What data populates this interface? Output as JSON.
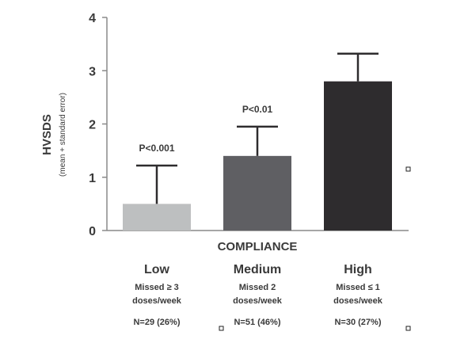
{
  "chart_data": {
    "type": "bar",
    "ylabel": "HVSDS",
    "ylabel_sub": "(mean + standard error)",
    "xlabel": "COMPLIANCE",
    "ylim": [
      0,
      4
    ],
    "yticks": [
      0,
      1,
      2,
      3,
      4
    ],
    "categories": [
      "Low",
      "Medium",
      "High"
    ],
    "values": [
      0.5,
      1.4,
      2.8
    ],
    "errors": [
      0.72,
      0.55,
      0.52
    ],
    "bar_colors": [
      "#bdbfc0",
      "#5f5f63",
      "#2e2c2e"
    ],
    "annotations": [
      "P<0.001",
      "P<0.01",
      ""
    ],
    "category_details": [
      {
        "line1": "Missed ≥ 3",
        "line2": "doses/week",
        "n": "N=29 (26%)"
      },
      {
        "line1": "Missed 2",
        "line2": "doses/week",
        "n": "N=51 (46%)"
      },
      {
        "line1": "Missed ≤ 1",
        "line2": "doses/week",
        "n": "N=30 (27%)"
      }
    ],
    "grid": false,
    "legend": "none"
  }
}
